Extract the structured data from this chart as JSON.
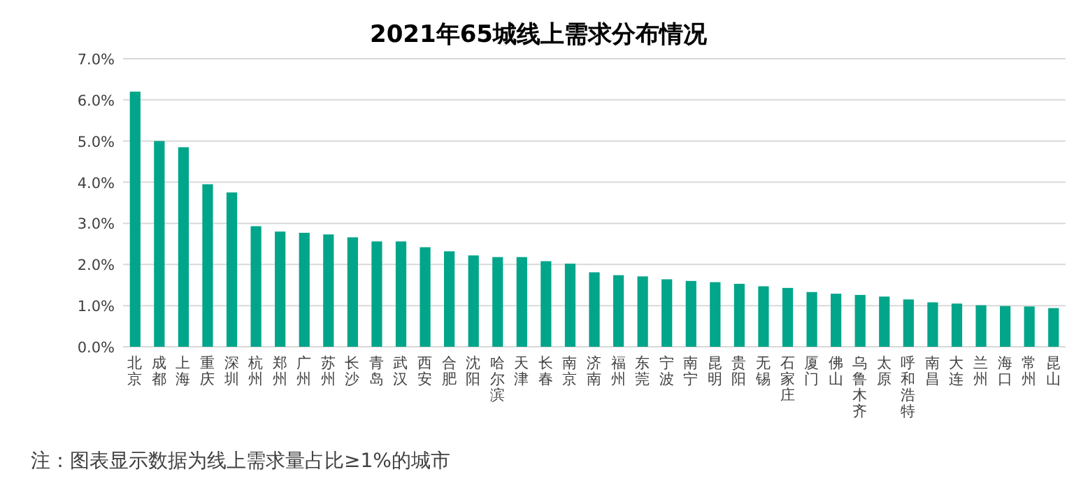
{
  "chart_data": {
    "type": "bar",
    "title": "2021年65城线上需求分布情况",
    "categories": [
      "北京",
      "成都",
      "上海",
      "重庆",
      "深圳",
      "杭州",
      "郑州",
      "广州",
      "苏州",
      "长沙",
      "青岛",
      "武汉",
      "西安",
      "合肥",
      "沈阳",
      "哈尔滨",
      "天津",
      "长春",
      "南京",
      "济南",
      "福州",
      "东莞",
      "宁波",
      "南宁",
      "昆明",
      "贵阳",
      "无锡",
      "石家庄",
      "厦门",
      "佛山",
      "乌鲁木齐",
      "太原",
      "呼和浩特",
      "南昌",
      "大连",
      "兰州",
      "海口",
      "常州",
      "昆山"
    ],
    "values": [
      6.2,
      5.0,
      4.85,
      3.95,
      3.75,
      2.93,
      2.8,
      2.77,
      2.73,
      2.66,
      2.56,
      2.56,
      2.42,
      2.32,
      2.22,
      2.18,
      2.18,
      2.08,
      2.02,
      1.81,
      1.74,
      1.71,
      1.64,
      1.6,
      1.57,
      1.53,
      1.47,
      1.43,
      1.33,
      1.29,
      1.26,
      1.22,
      1.15,
      1.08,
      1.05,
      1.01,
      0.99,
      0.98,
      0.94
    ],
    "color": "#00a58a",
    "ylim": [
      0,
      7
    ],
    "yticks": [
      {
        "value": 0,
        "label": "0.0%"
      },
      {
        "value": 1,
        "label": "1.0%"
      },
      {
        "value": 2,
        "label": "2.0%"
      },
      {
        "value": 3,
        "label": "3.0%"
      },
      {
        "value": 4,
        "label": "4.0%"
      },
      {
        "value": 5,
        "label": "5.0%"
      },
      {
        "value": 6,
        "label": "6.0%"
      },
      {
        "value": 7,
        "label": "7.0%"
      }
    ],
    "grid": "y",
    "annotations": [
      "注：图表显示数据为线上需求量占比≥1%的城市"
    ]
  }
}
